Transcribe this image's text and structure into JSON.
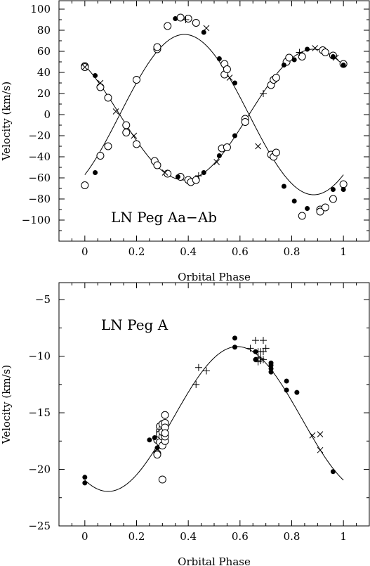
{
  "chart_data": [
    {
      "type": "scatter",
      "title": "LN Peg Aa−Ab",
      "xlabel": "Orbital Phase",
      "ylabel": "Velocity (km/s)",
      "xlim": [
        -0.1,
        1.1
      ],
      "ylim": [
        -120,
        108
      ],
      "xticks": [
        0,
        0.2,
        0.4,
        0.6,
        0.8,
        1
      ],
      "xticklabels": [
        "0",
        "0.2",
        "0.4",
        "0.6",
        "0.8",
        "1"
      ],
      "yticks": [
        -100,
        -80,
        -60,
        -40,
        -20,
        0,
        20,
        40,
        60,
        80,
        100
      ],
      "yticklabels": [
        "−100",
        "−80",
        "−60",
        "−40",
        "−20",
        "0",
        "20",
        "40",
        "60",
        "80",
        "100"
      ],
      "grid": false,
      "orbit_fits": [
        {
          "gamma": 0,
          "K": 76,
          "phase_of_max": 0.385,
          "mark": "line"
        },
        {
          "gamma": 0,
          "K": -62,
          "phase_of_max": 0.385,
          "mark": "line"
        }
      ],
      "series": [
        {
          "marker": "open-circle",
          "points": [
            [
              0.0,
              -67
            ],
            [
              0.0,
              46
            ],
            [
              0.0,
              45
            ],
            [
              0.06,
              -39
            ],
            [
              0.06,
              26
            ],
            [
              0.09,
              -30
            ],
            [
              0.09,
              16
            ],
            [
              0.16,
              -10
            ],
            [
              0.16,
              -17
            ],
            [
              0.2,
              33
            ],
            [
              0.2,
              -28
            ],
            [
              0.27,
              -44
            ],
            [
              0.28,
              -48
            ],
            [
              0.28,
              62
            ],
            [
              0.28,
              64
            ],
            [
              0.32,
              84
            ],
            [
              0.32,
              -56
            ],
            [
              0.37,
              92
            ],
            [
              0.37,
              -59
            ],
            [
              0.4,
              91
            ],
            [
              0.4,
              -62
            ],
            [
              0.41,
              -64
            ],
            [
              0.43,
              87
            ],
            [
              0.43,
              -62
            ],
            [
              0.53,
              -32
            ],
            [
              0.54,
              48
            ],
            [
              0.54,
              38
            ],
            [
              0.55,
              43
            ],
            [
              0.55,
              -31
            ],
            [
              0.62,
              -4
            ],
            [
              0.62,
              -7
            ],
            [
              0.72,
              -38
            ],
            [
              0.72,
              28
            ],
            [
              0.73,
              -40
            ],
            [
              0.73,
              33
            ],
            [
              0.74,
              -36
            ],
            [
              0.74,
              35
            ],
            [
              0.78,
              50
            ],
            [
              0.79,
              54
            ],
            [
              0.84,
              -96
            ],
            [
              0.84,
              55
            ],
            [
              0.91,
              -90
            ],
            [
              0.91,
              -92
            ],
            [
              0.92,
              61
            ],
            [
              0.93,
              -88
            ],
            [
              0.93,
              59
            ],
            [
              0.96,
              -80
            ],
            [
              0.96,
              56
            ],
            [
              1.0,
              -66
            ],
            [
              1.0,
              48
            ]
          ]
        },
        {
          "marker": "filled-circle",
          "points": [
            [
              0.04,
              -55
            ],
            [
              0.04,
              37
            ],
            [
              0.35,
              91
            ],
            [
              0.36,
              -59
            ],
            [
              0.46,
              78
            ],
            [
              0.46,
              -55
            ],
            [
              0.52,
              -39
            ],
            [
              0.52,
              53
            ],
            [
              0.58,
              -20
            ],
            [
              0.58,
              30
            ],
            [
              0.77,
              -68
            ],
            [
              0.77,
              47
            ],
            [
              0.81,
              -82
            ],
            [
              0.81,
              52
            ],
            [
              0.86,
              -89
            ],
            [
              0.86,
              62
            ],
            [
              0.96,
              -71
            ],
            [
              0.96,
              55
            ],
            [
              1.0,
              -71
            ],
            [
              1.0,
              47
            ]
          ]
        },
        {
          "marker": "plus",
          "points": [
            [
              0.39,
              90
            ],
            [
              0.44,
              -58
            ],
            [
              0.69,
              20
            ],
            [
              0.83,
              59
            ]
          ]
        },
        {
          "marker": "cross",
          "points": [
            [
              0.0,
              45
            ],
            [
              0.06,
              30
            ],
            [
              0.12,
              3
            ],
            [
              0.19,
              -20
            ],
            [
              0.31,
              -55
            ],
            [
              0.47,
              82
            ],
            [
              0.51,
              -45
            ],
            [
              0.56,
              35
            ],
            [
              0.67,
              -30
            ],
            [
              0.89,
              63
            ],
            [
              0.97,
              54
            ]
          ]
        }
      ],
      "annotation": "LN Peg Aa−Ab"
    },
    {
      "type": "scatter",
      "title": "LN Peg A",
      "xlabel": "Orbital Phase",
      "ylabel": "Velocity (km/s)",
      "xlim": [
        -0.1,
        1.1
      ],
      "ylim": [
        -25,
        -3.5
      ],
      "xticks": [
        0,
        0.2,
        0.4,
        0.6,
        0.8,
        1
      ],
      "xticklabels": [
        "0",
        "0.2",
        "0.4",
        "0.6",
        "0.8",
        "1"
      ],
      "yticks": [
        -25,
        -20,
        -15,
        -10,
        -5
      ],
      "yticklabels": [
        "−25",
        "−20",
        "−15",
        "−10",
        "−5"
      ],
      "grid": false,
      "orbit_fits": [
        {
          "gamma": -15.55,
          "K": 6.4,
          "phase_of_max": 0.59,
          "mark": "line"
        }
      ],
      "series": [
        {
          "marker": "open-circle",
          "points": [
            [
              0.28,
              -18.6
            ],
            [
              0.28,
              -18.7
            ],
            [
              0.28,
              -17.4
            ],
            [
              0.29,
              -16.6
            ],
            [
              0.29,
              -16.2
            ],
            [
              0.29,
              -16.9
            ],
            [
              0.29,
              -17.6
            ],
            [
              0.3,
              -16.4
            ],
            [
              0.3,
              -16.0
            ],
            [
              0.3,
              -17.1
            ],
            [
              0.3,
              -16.7
            ],
            [
              0.3,
              -17.9
            ],
            [
              0.3,
              -20.9
            ],
            [
              0.31,
              -15.2
            ],
            [
              0.31,
              -15.9
            ],
            [
              0.31,
              -16.3
            ],
            [
              0.31,
              -17.5
            ],
            [
              0.31,
              -17.1
            ],
            [
              0.31,
              -16.8
            ]
          ]
        },
        {
          "marker": "filled-circle",
          "points": [
            [
              0.0,
              -20.7
            ],
            [
              0.0,
              -21.2
            ],
            [
              0.25,
              -17.4
            ],
            [
              0.27,
              -17.2
            ],
            [
              0.28,
              -18.1
            ],
            [
              0.58,
              -8.4
            ],
            [
              0.58,
              -9.2
            ],
            [
              0.66,
              -9.6
            ],
            [
              0.66,
              -10.3
            ],
            [
              0.72,
              -10.6
            ],
            [
              0.72,
              -10.8
            ],
            [
              0.72,
              -11.1
            ],
            [
              0.72,
              -11.4
            ],
            [
              0.78,
              -12.2
            ],
            [
              0.78,
              -13.0
            ],
            [
              0.82,
              -13.2
            ],
            [
              0.96,
              -20.2
            ]
          ]
        },
        {
          "marker": "plus",
          "points": [
            [
              0.43,
              -12.5
            ],
            [
              0.44,
              -11.0
            ],
            [
              0.47,
              -11.3
            ],
            [
              0.64,
              -9.3
            ],
            [
              0.66,
              -8.6
            ],
            [
              0.67,
              -9.6
            ],
            [
              0.67,
              -10.1
            ],
            [
              0.67,
              -10.5
            ],
            [
              0.68,
              -9.6
            ],
            [
              0.68,
              -10.2
            ],
            [
              0.68,
              -10.4
            ],
            [
              0.69,
              -8.6
            ],
            [
              0.69,
              -9.6
            ],
            [
              0.69,
              -10.3
            ],
            [
              0.7,
              -9.3
            ]
          ]
        },
        {
          "marker": "cross",
          "points": [
            [
              0.88,
              -17.0
            ],
            [
              0.91,
              -16.9
            ],
            [
              0.91,
              -18.3
            ]
          ]
        }
      ],
      "annotation": "LN Peg A"
    }
  ]
}
